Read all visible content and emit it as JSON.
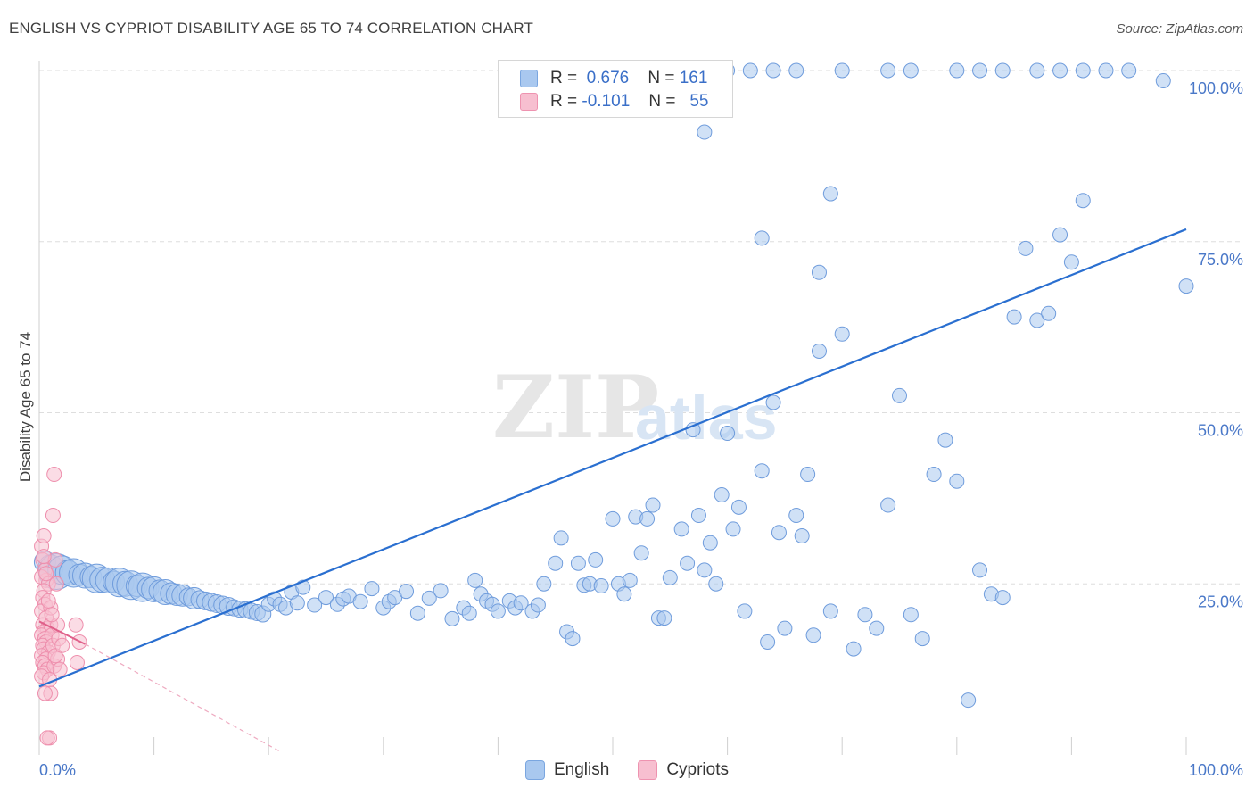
{
  "title": "ENGLISH VS CYPRIOT DISABILITY AGE 65 TO 74 CORRELATION CHART",
  "source": "Source: ZipAtlas.com",
  "watermark": {
    "zip": "ZIP",
    "atlas": "atlas"
  },
  "legend": {
    "r_label": "R =",
    "n_label": "N =",
    "rows": [
      {
        "r": "0.676",
        "n": "161",
        "fill": "#a9c8ef",
        "stroke": "#7aa6e0"
      },
      {
        "r": "-0.101",
        "n": "55",
        "fill": "#f7bfd0",
        "stroke": "#ee93b0"
      }
    ]
  },
  "bottom_legend": [
    "English",
    "Cypriots"
  ],
  "colors": {
    "english_fill": "#a9c8ef",
    "english_stroke": "#6f9cdc",
    "english_line": "#2a6fd0",
    "cypriot_fill": "#f7bfd0",
    "cypriot_stroke": "#ee8fad",
    "cypriot_line": "#e0608a",
    "grid": "#dedede",
    "tick_text": "#4a78c8"
  },
  "chart_data": {
    "type": "scatter",
    "ylabel": "Disability Age 65 to 74",
    "xlabel": "",
    "xlim": [
      0,
      100
    ],
    "ylim": [
      0,
      100
    ],
    "x_tick_labels": [
      {
        "value": 0,
        "label": "0.0%"
      },
      {
        "value": 100,
        "label": "100.0%"
      }
    ],
    "y_tick_labels": [
      {
        "value": 100,
        "label": "100.0%"
      },
      {
        "value": 75,
        "label": "75.0%"
      },
      {
        "value": 50,
        "label": "50.0%"
      },
      {
        "value": 25,
        "label": "25.0%"
      }
    ],
    "legend_position": "top-center",
    "grid": true,
    "series": [
      {
        "name": "English",
        "r": 0.676,
        "n": 161,
        "trendline": [
          [
            0,
            10.0
          ],
          [
            100,
            76.8
          ]
        ],
        "points": [
          [
            0.5,
            28.2,
            12
          ],
          [
            1,
            27.4,
            14
          ],
          [
            1.5,
            26.8,
            20
          ],
          [
            2,
            27.0,
            16
          ],
          [
            2.5,
            26.6,
            14
          ],
          [
            3,
            26.6,
            16
          ],
          [
            3.5,
            26.3,
            12
          ],
          [
            4,
            26.2,
            14
          ],
          [
            4.5,
            26.0,
            12
          ],
          [
            5,
            25.8,
            16
          ],
          [
            5.5,
            25.6,
            14
          ],
          [
            6,
            25.5,
            14
          ],
          [
            6.5,
            25.3,
            12
          ],
          [
            7,
            25.2,
            16
          ],
          [
            7.5,
            25.0,
            14
          ],
          [
            8,
            24.8,
            16
          ],
          [
            8.5,
            24.7,
            12
          ],
          [
            9,
            24.5,
            16
          ],
          [
            9.5,
            24.4,
            12
          ],
          [
            10,
            24.2,
            14
          ],
          [
            10.5,
            24.0,
            12
          ],
          [
            11,
            23.8,
            14
          ],
          [
            11.5,
            23.6,
            12
          ],
          [
            12,
            23.4,
            12
          ],
          [
            12.5,
            23.3,
            12
          ],
          [
            13,
            23.1,
            10
          ],
          [
            13.5,
            22.9,
            12
          ],
          [
            14,
            22.7,
            10
          ],
          [
            14.5,
            22.5,
            10
          ],
          [
            15,
            22.3,
            10
          ],
          [
            15.5,
            22.1,
            10
          ],
          [
            16,
            21.9,
            10
          ],
          [
            16.5,
            21.7,
            10
          ],
          [
            17,
            21.5,
            9
          ],
          [
            17.5,
            21.3,
            9
          ],
          [
            18,
            21.2,
            9
          ],
          [
            18.5,
            21.0,
            9
          ],
          [
            19,
            20.8,
            9
          ],
          [
            19.5,
            20.6,
            9
          ],
          [
            20,
            22.0,
            8
          ],
          [
            20.5,
            22.8,
            8
          ],
          [
            21,
            22.0,
            8
          ],
          [
            21.5,
            21.5,
            8
          ],
          [
            22,
            23.8,
            8
          ],
          [
            22.5,
            22.2,
            8
          ],
          [
            23,
            24.5,
            8
          ],
          [
            24,
            21.9,
            8
          ],
          [
            25,
            23.0,
            8
          ],
          [
            26,
            22.0,
            8
          ],
          [
            26.5,
            22.8,
            8
          ],
          [
            27,
            23.2,
            8
          ],
          [
            28,
            22.4,
            8
          ],
          [
            29,
            24.3,
            8
          ],
          [
            30,
            21.5,
            8
          ],
          [
            30.5,
            22.4,
            8
          ],
          [
            31,
            23.0,
            8
          ],
          [
            32,
            23.9,
            8
          ],
          [
            33,
            20.7,
            8
          ],
          [
            34,
            22.9,
            8
          ],
          [
            35,
            24.0,
            8
          ],
          [
            36,
            19.9,
            8
          ],
          [
            37,
            21.5,
            8
          ],
          [
            37.5,
            20.7,
            8
          ],
          [
            38,
            25.5,
            8
          ],
          [
            38.5,
            23.5,
            8
          ],
          [
            39,
            22.5,
            8
          ],
          [
            39.5,
            22.0,
            8
          ],
          [
            40,
            21.0,
            8
          ],
          [
            41,
            22.5,
            8
          ],
          [
            41.5,
            21.5,
            8
          ],
          [
            42,
            22.2,
            8
          ],
          [
            43,
            21.0,
            8
          ],
          [
            43.5,
            21.9,
            8
          ],
          [
            44,
            25.0,
            8
          ],
          [
            45,
            28.0,
            8
          ],
          [
            45.5,
            31.7,
            8
          ],
          [
            46,
            18.0,
            8
          ],
          [
            46.5,
            17.0,
            8
          ],
          [
            47,
            28.0,
            8
          ],
          [
            47.5,
            24.8,
            8
          ],
          [
            48,
            25.0,
            8
          ],
          [
            48.5,
            28.5,
            8
          ],
          [
            49,
            24.7,
            8
          ],
          [
            50,
            34.5,
            8
          ],
          [
            50.5,
            25.0,
            8
          ],
          [
            51,
            23.5,
            8
          ],
          [
            51.5,
            25.5,
            8
          ],
          [
            52,
            34.8,
            8
          ],
          [
            52.5,
            29.5,
            8
          ],
          [
            53,
            34.5,
            8
          ],
          [
            53.5,
            36.5,
            8
          ],
          [
            54,
            20.0,
            8
          ],
          [
            54.5,
            20.0,
            8
          ],
          [
            55,
            25.9,
            8
          ],
          [
            56,
            33.0,
            8
          ],
          [
            56.5,
            28.0,
            8
          ],
          [
            57,
            47.5,
            8
          ],
          [
            57.5,
            35.0,
            8
          ],
          [
            58,
            27.0,
            8
          ],
          [
            58.5,
            31.0,
            8
          ],
          [
            59,
            25.0,
            8
          ],
          [
            59.5,
            38.0,
            8
          ],
          [
            60,
            47.0,
            8
          ],
          [
            60.5,
            33.0,
            8
          ],
          [
            61,
            36.2,
            8
          ],
          [
            61.5,
            21.0,
            8
          ],
          [
            63,
            41.5,
            8
          ],
          [
            63.5,
            16.5,
            8
          ],
          [
            64,
            51.5,
            8
          ],
          [
            64.5,
            32.5,
            8
          ],
          [
            65,
            18.5,
            8
          ],
          [
            66,
            35.0,
            8
          ],
          [
            66.5,
            32.0,
            8
          ],
          [
            67,
            41.0,
            8
          ],
          [
            67.5,
            17.5,
            8
          ],
          [
            68,
            59.0,
            8
          ],
          [
            69,
            21.0,
            8
          ],
          [
            70,
            61.5,
            8
          ],
          [
            71,
            15.5,
            8
          ],
          [
            72,
            20.5,
            8
          ],
          [
            73,
            18.5,
            8
          ],
          [
            74,
            36.5,
            8
          ],
          [
            75,
            52.5,
            8
          ],
          [
            76,
            20.5,
            8
          ],
          [
            77,
            17.0,
            8
          ],
          [
            78,
            41.0,
            8
          ],
          [
            79,
            46.0,
            8
          ],
          [
            80,
            40.0,
            8
          ],
          [
            81,
            8.0,
            8
          ],
          [
            82,
            27.0,
            8
          ],
          [
            83,
            23.5,
            8
          ],
          [
            84,
            23.0,
            8
          ],
          [
            85,
            64.0,
            8
          ],
          [
            86,
            74.0,
            8
          ],
          [
            87,
            63.5,
            8
          ],
          [
            88,
            64.5,
            8
          ],
          [
            89,
            76.0,
            8
          ],
          [
            90,
            72.0,
            8
          ],
          [
            91,
            81.0,
            8
          ],
          [
            56,
            100.0,
            8
          ],
          [
            60,
            100.0,
            8
          ],
          [
            62,
            100.0,
            8
          ],
          [
            64,
            100.0,
            8
          ],
          [
            66,
            100.0,
            8
          ],
          [
            70,
            100.0,
            8
          ],
          [
            74,
            100.0,
            8
          ],
          [
            76,
            100.0,
            8
          ],
          [
            80,
            100.0,
            8
          ],
          [
            82,
            100.0,
            8
          ],
          [
            84,
            100.0,
            8
          ],
          [
            87,
            100.0,
            8
          ],
          [
            89,
            100.0,
            8
          ],
          [
            91,
            100.0,
            8
          ],
          [
            93,
            100.0,
            8
          ],
          [
            95,
            100.0,
            8
          ],
          [
            98,
            98.5,
            8
          ],
          [
            100,
            68.5,
            8
          ],
          [
            58,
            91.0,
            8
          ],
          [
            69,
            82.0,
            8
          ],
          [
            63,
            75.5,
            8
          ],
          [
            68,
            70.5,
            8
          ]
        ]
      },
      {
        "name": "Cypriots",
        "r": -0.101,
        "n": 55,
        "trendline_solid": [
          [
            0,
            19.5
          ],
          [
            4,
            16.2
          ]
        ],
        "trendline_dashed": [
          [
            4,
            16.2
          ],
          [
            21,
            0.5
          ]
        ],
        "points": [
          [
            0.2,
            30.5,
            8
          ],
          [
            0.4,
            32.0,
            8
          ],
          [
            0.3,
            28.5,
            8
          ],
          [
            0.5,
            27.0,
            8
          ],
          [
            0.6,
            25.5,
            8
          ],
          [
            0.2,
            26.0,
            8
          ],
          [
            0.8,
            25.0,
            8
          ],
          [
            0.4,
            24.0,
            8
          ],
          [
            0.3,
            23.0,
            8
          ],
          [
            0.5,
            22.0,
            8
          ],
          [
            0.2,
            21.0,
            8
          ],
          [
            0.6,
            20.0,
            8
          ],
          [
            0.3,
            19.0,
            8
          ],
          [
            0.7,
            18.5,
            8
          ],
          [
            0.4,
            18.0,
            8
          ],
          [
            0.2,
            17.5,
            8
          ],
          [
            0.5,
            17.0,
            8
          ],
          [
            0.6,
            16.5,
            8
          ],
          [
            0.3,
            16.0,
            8
          ],
          [
            0.4,
            15.5,
            8
          ],
          [
            0.8,
            15.0,
            8
          ],
          [
            0.2,
            14.5,
            8
          ],
          [
            0.6,
            14.0,
            8
          ],
          [
            0.3,
            13.5,
            8
          ],
          [
            0.5,
            13.0,
            8
          ],
          [
            0.7,
            12.5,
            8
          ],
          [
            0.4,
            12.0,
            8
          ],
          [
            0.2,
            11.5,
            8
          ],
          [
            0.9,
            11.0,
            8
          ],
          [
            1.0,
            19.0,
            8
          ],
          [
            1.1,
            17.5,
            8
          ],
          [
            1.2,
            16.0,
            8
          ],
          [
            1.3,
            13.0,
            8
          ],
          [
            1.0,
            9.0,
            8
          ],
          [
            1.2,
            35.0,
            8
          ],
          [
            1.3,
            41.0,
            8
          ],
          [
            1.4,
            28.5,
            8
          ],
          [
            1.5,
            25.0,
            8
          ],
          [
            1.0,
            21.5,
            8
          ],
          [
            1.6,
            19.0,
            8
          ],
          [
            0.9,
            2.5,
            8
          ],
          [
            0.7,
            2.5,
            8
          ],
          [
            3.2,
            19.0,
            8
          ],
          [
            3.5,
            16.5,
            8
          ],
          [
            3.3,
            13.5,
            8
          ],
          [
            0.5,
            9.0,
            8
          ],
          [
            1.6,
            14.0,
            8
          ],
          [
            1.8,
            12.5,
            8
          ],
          [
            0.6,
            26.5,
            8
          ],
          [
            0.8,
            22.5,
            8
          ],
          [
            1.1,
            20.5,
            8
          ],
          [
            1.4,
            14.5,
            8
          ],
          [
            1.7,
            17.0,
            8
          ],
          [
            2.0,
            16.0,
            8
          ],
          [
            0.4,
            29.0,
            8
          ]
        ]
      }
    ]
  }
}
